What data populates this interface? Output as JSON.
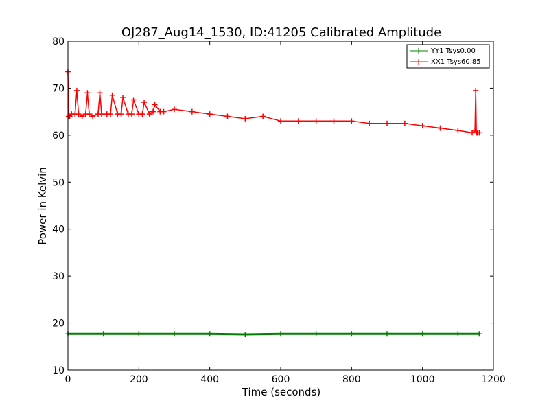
{
  "chart_data": {
    "type": "line",
    "title": "OJ287_Aug14_1530, ID:41205 Calibrated Amplitude",
    "xlabel": "Time (seconds)",
    "ylabel": "Power in Kelvin",
    "xlim": [
      0,
      1200
    ],
    "ylim": [
      10,
      80
    ],
    "xticks": [
      "0",
      "200",
      "400",
      "600",
      "800",
      "1000",
      "1200"
    ],
    "yticks": [
      "10",
      "20",
      "30",
      "40",
      "50",
      "60",
      "70",
      "80"
    ],
    "grid": false,
    "legend_position": "top-right",
    "series": [
      {
        "name": "YY1 Tsys0.00",
        "color": "#008000",
        "marker": "+",
        "x": [
          0,
          100,
          200,
          300,
          400,
          500,
          600,
          700,
          800,
          900,
          1000,
          1100,
          1160
        ],
        "y": [
          17.7,
          17.7,
          17.7,
          17.7,
          17.7,
          17.6,
          17.7,
          17.7,
          17.7,
          17.7,
          17.7,
          17.7,
          17.7
        ]
      },
      {
        "name": "XX1 Tsys60.85",
        "color": "#ff0000",
        "marker": "+",
        "x": [
          0,
          2,
          5,
          10,
          20,
          25,
          30,
          40,
          50,
          55,
          60,
          70,
          85,
          90,
          95,
          110,
          120,
          125,
          140,
          150,
          155,
          170,
          180,
          185,
          200,
          210,
          215,
          230,
          240,
          245,
          260,
          270,
          300,
          350,
          400,
          450,
          500,
          550,
          600,
          650,
          700,
          750,
          800,
          850,
          900,
          950,
          1000,
          1050,
          1100,
          1140,
          1148,
          1150,
          1152,
          1155,
          1160
        ],
        "y": [
          73.5,
          64,
          64,
          64.5,
          64.5,
          69.5,
          64.5,
          64,
          64.5,
          69,
          64.5,
          64,
          64.5,
          69,
          64.5,
          64.5,
          64.5,
          68.5,
          64.5,
          64.5,
          68,
          64.5,
          64.5,
          67.5,
          64.5,
          64.5,
          67,
          64.5,
          65,
          66.5,
          65,
          65,
          65.5,
          65,
          64.5,
          64,
          63.5,
          64,
          63,
          63,
          63,
          63,
          63,
          62.5,
          62.5,
          62.5,
          62,
          61.5,
          61,
          60.5,
          61,
          69.5,
          60.5,
          60.5,
          60.5
        ]
      }
    ]
  }
}
